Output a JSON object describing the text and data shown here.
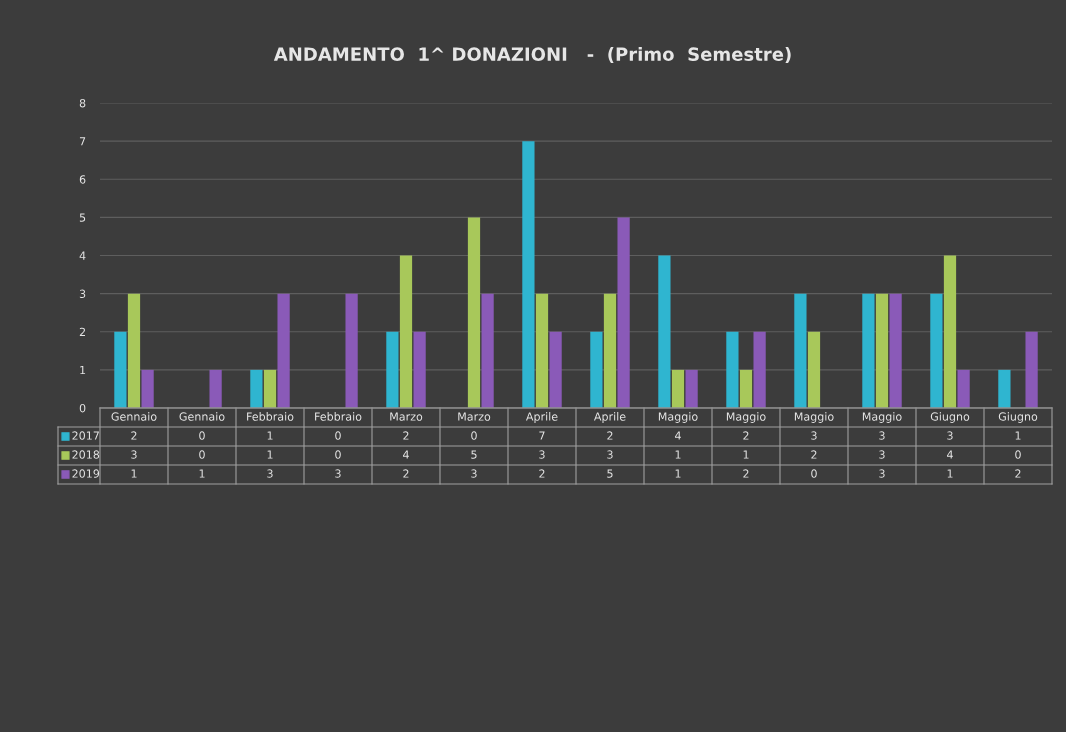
{
  "chart_data": {
    "type": "bar",
    "title": "ANDAMENTO  1^ DONAZIONI   -  (Primo  Semestre)",
    "categories": [
      "Gennaio",
      "Gennaio",
      "Febbraio",
      "Febbraio",
      "Marzo",
      "Marzo",
      "Aprile",
      "Aprile",
      "Maggio",
      "Maggio",
      "Maggio",
      "Maggio",
      "Giugno",
      "Giugno"
    ],
    "series": [
      {
        "name": "2017",
        "color": "#2fb5d0",
        "values": [
          2,
          0,
          1,
          0,
          2,
          0,
          7,
          2,
          4,
          2,
          3,
          3,
          3,
          1
        ]
      },
      {
        "name": "2018",
        "color": "#a8c85a",
        "values": [
          3,
          0,
          1,
          0,
          4,
          5,
          3,
          3,
          1,
          1,
          2,
          3,
          4,
          0
        ]
      },
      {
        "name": "2019",
        "color": "#8a5ab8",
        "values": [
          1,
          1,
          3,
          3,
          2,
          3,
          2,
          5,
          1,
          2,
          0,
          3,
          1,
          2
        ]
      }
    ],
    "ylim": [
      0,
      8
    ],
    "yticks": [
      0,
      1,
      2,
      3,
      4,
      5,
      6,
      7,
      8
    ],
    "grid": "y",
    "legend": "bottom",
    "data_labels": true
  }
}
